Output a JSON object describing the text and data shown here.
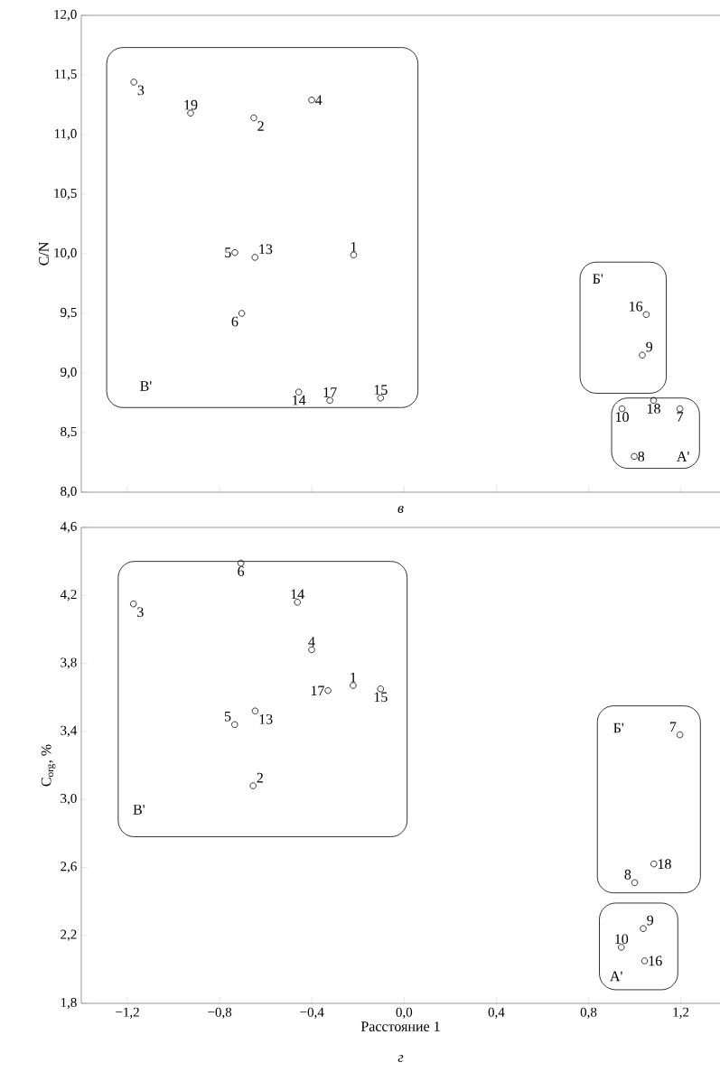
{
  "chart_data": [
    {
      "type": "scatter",
      "ylabel": "C/N",
      "color": "#000000",
      "marker": "circle",
      "tick_labels": "y",
      "series": [
        {
          "name": "1",
          "x": [
            -0.219
          ],
          "values": [
            9.99
          ]
        },
        {
          "name": "2",
          "x": [
            -0.652
          ],
          "values": [
            11.14
          ]
        },
        {
          "name": "3",
          "x": [
            -1.172
          ],
          "values": [
            11.44
          ]
        },
        {
          "name": "4",
          "x": [
            -0.401
          ],
          "values": [
            11.29
          ]
        },
        {
          "name": "5",
          "x": [
            -0.734
          ],
          "values": [
            10.01
          ]
        },
        {
          "name": "6",
          "x": [
            -0.704
          ],
          "values": [
            9.5
          ]
        },
        {
          "name": "7",
          "x": [
            1.196
          ],
          "values": [
            8.7
          ]
        },
        {
          "name": "8",
          "x": [
            0.998
          ],
          "values": [
            8.3
          ]
        },
        {
          "name": "9",
          "x": [
            1.033
          ],
          "values": [
            9.15
          ]
        },
        {
          "name": "10",
          "x": [
            0.945
          ],
          "values": [
            8.7
          ]
        },
        {
          "name": "13",
          "x": [
            -0.647
          ],
          "values": [
            9.97
          ]
        },
        {
          "name": "14",
          "x": [
            -0.457
          ],
          "values": [
            8.84
          ]
        },
        {
          "name": "15",
          "x": [
            -0.102
          ],
          "values": [
            8.79
          ]
        },
        {
          "name": "16",
          "x": [
            1.05
          ],
          "values": [
            9.49
          ]
        },
        {
          "name": "17",
          "x": [
            -0.322
          ],
          "values": [
            8.77
          ]
        },
        {
          "name": "18",
          "x": [
            1.082
          ],
          "values": [
            8.77
          ]
        },
        {
          "name": "19",
          "x": [
            -0.926
          ],
          "values": [
            11.18
          ]
        }
      ],
      "xlim": [
        -1.4,
        1.37
      ],
      "ylim": [
        8.0,
        12.0
      ],
      "xticks": [
        {
          "value": -1.2,
          "label": null
        },
        {
          "value": -0.8,
          "label": null
        },
        {
          "value": -0.4,
          "label": null
        },
        {
          "value": 0.0,
          "label": null
        },
        {
          "value": 0.4,
          "label": null
        },
        {
          "value": 0.8,
          "label": null
        },
        {
          "value": 1.2,
          "label": null
        }
      ],
      "yticks": [
        {
          "value": 8.0,
          "label": "8,0"
        },
        {
          "value": 8.5,
          "label": "8,5"
        },
        {
          "value": 9.0,
          "label": "9,0"
        },
        {
          "value": 9.5,
          "label": "9,5"
        },
        {
          "value": 10.0,
          "label": "10,0"
        },
        {
          "value": 10.5,
          "label": "10,5"
        },
        {
          "value": 11.0,
          "label": "11,0"
        },
        {
          "value": 11.5,
          "label": "11,5"
        },
        {
          "value": 12.0,
          "label": "12,0"
        }
      ],
      "annotations": [
        "В'",
        "Б'",
        "А'",
        "в"
      ]
    },
    {
      "type": "scatter",
      "xlabel": "Расстояние 1",
      "ylabel": "C$_{org}$, %",
      "color": "#000000",
      "marker": "circle",
      "series": [
        {
          "name": "1",
          "x": [
            -0.221
          ],
          "values": [
            3.67
          ]
        },
        {
          "name": "2",
          "x": [
            -0.655
          ],
          "values": [
            3.08
          ]
        },
        {
          "name": "3",
          "x": [
            -1.174
          ],
          "values": [
            4.15
          ]
        },
        {
          "name": "4",
          "x": [
            -0.401
          ],
          "values": [
            3.88
          ]
        },
        {
          "name": "5",
          "x": [
            -0.735
          ],
          "values": [
            3.44
          ]
        },
        {
          "name": "6",
          "x": [
            -0.708
          ],
          "values": [
            4.39
          ]
        },
        {
          "name": "7",
          "x": [
            1.196
          ],
          "values": [
            3.38
          ]
        },
        {
          "name": "8",
          "x": [
            1.0
          ],
          "values": [
            2.51
          ]
        },
        {
          "name": "9",
          "x": [
            1.037
          ],
          "values": [
            2.24
          ]
        },
        {
          "name": "10",
          "x": [
            0.942
          ],
          "values": [
            2.13
          ]
        },
        {
          "name": "13",
          "x": [
            -0.646
          ],
          "values": [
            3.52
          ]
        },
        {
          "name": "14",
          "x": [
            -0.463
          ],
          "values": [
            4.16
          ]
        },
        {
          "name": "15",
          "x": [
            -0.102
          ],
          "values": [
            3.65
          ]
        },
        {
          "name": "16",
          "x": [
            1.043
          ],
          "values": [
            2.05
          ]
        },
        {
          "name": "17",
          "x": [
            -0.33
          ],
          "values": [
            3.64
          ]
        },
        {
          "name": "18",
          "x": [
            1.083
          ],
          "values": [
            2.62
          ]
        }
      ],
      "xlim": [
        -1.4,
        1.37
      ],
      "ylim": [
        1.8,
        4.6
      ],
      "xticks": [
        {
          "value": -1.2,
          "label": "−1,2"
        },
        {
          "value": -0.8,
          "label": "−0,8"
        },
        {
          "value": -0.4,
          "label": "−0,4"
        },
        {
          "value": 0.0,
          "label": "0,0"
        },
        {
          "value": 0.4,
          "label": "0,4"
        },
        {
          "value": 0.8,
          "label": "0,8"
        },
        {
          "value": 1.2,
          "label": "1,2"
        }
      ],
      "yticks": [
        {
          "value": 1.8,
          "label": "1,8"
        },
        {
          "value": 2.2,
          "label": "2,2"
        },
        {
          "value": 2.6,
          "label": "2,6"
        },
        {
          "value": 3.0,
          "label": "3,0"
        },
        {
          "value": 3.4,
          "label": "3,4"
        },
        {
          "value": 3.8,
          "label": "3,8"
        },
        {
          "value": 4.2,
          "label": "4,2"
        },
        {
          "value": 4.6,
          "label": "4,6"
        }
      ],
      "annotations": [
        "В'",
        "Б'",
        "А'",
        "г"
      ]
    }
  ]
}
